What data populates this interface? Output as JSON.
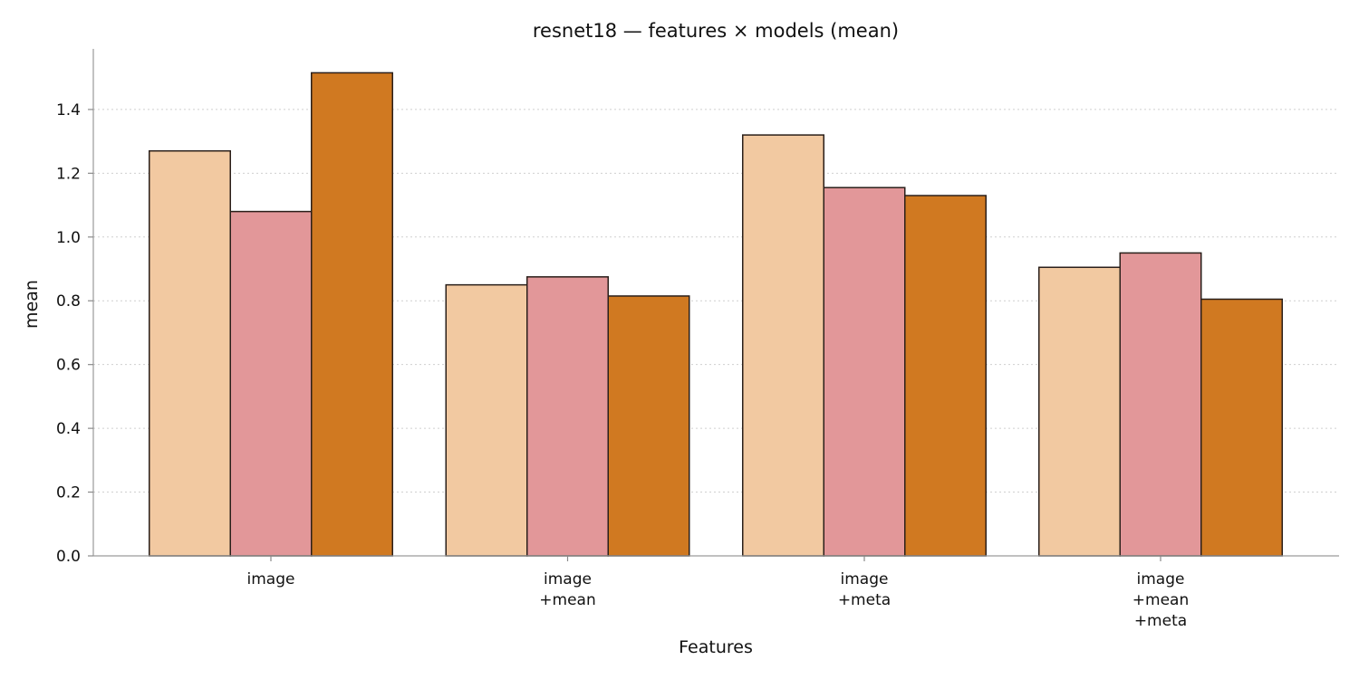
{
  "chart_data": {
    "type": "bar",
    "title": "resnet18 — features × models (mean)",
    "xlabel": "Features",
    "ylabel": "mean",
    "categories": [
      [
        "image"
      ],
      [
        "image",
        "+mean"
      ],
      [
        "image",
        "+meta"
      ],
      [
        "image",
        "+mean",
        "+meta"
      ]
    ],
    "series": [
      {
        "values": [
          1.27,
          0.85,
          1.32,
          0.905
        ],
        "color": "#f2c9a1"
      },
      {
        "values": [
          1.08,
          0.875,
          1.155,
          0.95
        ],
        "color": "#e29799"
      },
      {
        "values": [
          1.515,
          0.815,
          1.13,
          0.805
        ],
        "color": "#d07921"
      }
    ],
    "ylim": [
      0,
      1.59
    ],
    "yticks": [
      "0.0",
      "0.2",
      "0.4",
      "0.6",
      "0.8",
      "1.0",
      "1.2",
      "1.4"
    ],
    "grid": "horizontal dotted",
    "legend": "none"
  }
}
